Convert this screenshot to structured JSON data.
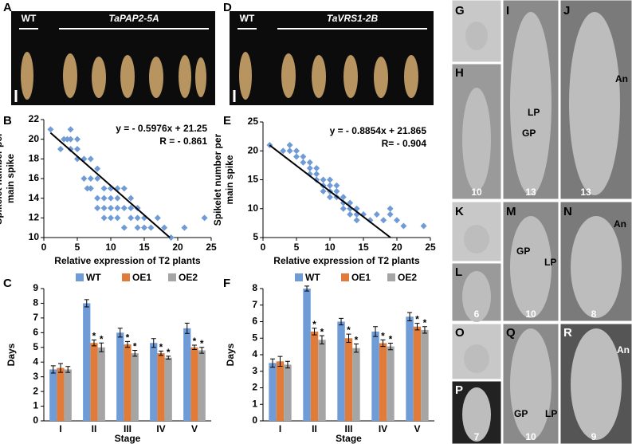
{
  "panel_labels": [
    "A",
    "B",
    "C",
    "D",
    "E",
    "F",
    "G",
    "H",
    "I",
    "J",
    "K",
    "L",
    "M",
    "N",
    "O",
    "P",
    "Q",
    "R"
  ],
  "photo_text": {
    "wt_a": "WT",
    "line_a": "TaPAP2-5A",
    "wt_d": "WT",
    "line_d": "TaVRS1-2B",
    "stages": [
      "10",
      "13",
      "13",
      "6",
      "10",
      "8",
      "7",
      "10",
      "9"
    ],
    "annotations": [
      "LP",
      "GP",
      "An",
      "GP",
      "LP",
      "An",
      "GP",
      "LP",
      "An"
    ]
  },
  "chart_data": [
    {
      "type": "scatter",
      "color": "#6f9bd6",
      "x": [
        1,
        3,
        4,
        5,
        4,
        2.5,
        3.5,
        4,
        5,
        5,
        6,
        6,
        6.5,
        7,
        7,
        7,
        8,
        8,
        8,
        8,
        9,
        9,
        9,
        9,
        10,
        10,
        10,
        10,
        11,
        11,
        11,
        11,
        12,
        12,
        12,
        13,
        13,
        13,
        14,
        14,
        14,
        15,
        15,
        16,
        17,
        18,
        19,
        21,
        24
      ],
      "y": [
        21,
        20,
        20,
        20,
        21,
        19,
        20,
        19,
        18,
        19,
        18,
        16,
        15,
        18,
        16,
        15,
        17,
        16,
        14,
        13,
        15,
        14,
        13,
        12,
        15,
        14,
        13,
        12,
        15,
        14,
        13,
        12,
        15,
        13,
        11,
        14,
        13,
        12,
        13,
        12,
        11,
        12,
        11,
        11,
        12,
        11,
        10,
        11,
        12
      ],
      "xlim": [
        0,
        25
      ],
      "xticks": [
        0,
        5,
        10,
        15,
        20,
        25
      ],
      "ylim": [
        10,
        22
      ],
      "yticks": [
        10,
        12,
        14,
        16,
        18,
        20,
        22
      ],
      "xlabel": "Relative expression of T2 plants",
      "ylabel": [
        "Spikelet number per",
        "main spike"
      ],
      "equation": "y = - 0.5976x + 21.25",
      "r_label": "R = - 0.861",
      "trendline": {
        "slope": -0.5976,
        "intercept": 21.25
      }
    },
    {
      "type": "scatter",
      "color": "#6f9bd6",
      "x": [
        1,
        3,
        4,
        4,
        5,
        5,
        6,
        6,
        7,
        7,
        7,
        8,
        8,
        8,
        9,
        9,
        9,
        10,
        10,
        10,
        10,
        11,
        11,
        11,
        12,
        12,
        12,
        13,
        13,
        13,
        14,
        14,
        14,
        15,
        16,
        17,
        18,
        19,
        19,
        20,
        21,
        24
      ],
      "y": [
        21,
        20,
        20,
        21,
        19,
        20,
        19,
        18,
        18,
        17,
        16,
        17,
        15,
        16,
        15,
        14,
        13,
        15,
        14,
        12,
        13,
        14,
        12,
        13,
        12,
        11,
        10,
        11,
        10,
        9,
        10,
        9,
        8,
        9,
        8,
        9,
        8,
        10,
        9,
        8,
        7,
        7
      ],
      "xlim": [
        0,
        25
      ],
      "xticks": [
        0,
        5,
        10,
        15,
        20,
        25
      ],
      "ylim": [
        5,
        25
      ],
      "yticks": [
        5,
        10,
        15,
        20,
        25
      ],
      "xlabel": "Relative expression of T2 plants",
      "ylabel": [
        "Spikelet number per",
        "main spike"
      ],
      "equation": "y = - 0.8854x + 21.865",
      "r_label": "R= - 0.904",
      "trendline": {
        "slope": -0.8854,
        "intercept": 21.865
      }
    },
    {
      "type": "bar",
      "categories": [
        "I",
        "II",
        "III",
        "IV",
        "V"
      ],
      "xlabel": "Stage",
      "ylabel": "Days",
      "ylim": [
        0,
        9
      ],
      "yticks": [
        0,
        1,
        2,
        3,
        4,
        5,
        6,
        7,
        8,
        9
      ],
      "series": [
        {
          "name": "WT",
          "color": "#6f9bd6",
          "values": [
            3.5,
            8,
            6,
            5.3,
            6.3
          ],
          "errors": [
            0.25,
            0.25,
            0.3,
            0.3,
            0.35
          ]
        },
        {
          "name": "OE1",
          "color": "#e07b39",
          "values": [
            3.6,
            5.3,
            5.2,
            4.6,
            5
          ],
          "errors": [
            0.3,
            0.2,
            0.2,
            0.15,
            0.15
          ],
          "annotations": [
            null,
            "*",
            "*",
            "*",
            "*"
          ]
        },
        {
          "name": "OE2",
          "color": "#a5a5a5",
          "values": [
            3.5,
            5,
            4.6,
            4.3,
            4.8
          ],
          "errors": [
            0.2,
            0.3,
            0.2,
            0.1,
            0.2
          ],
          "annotations": [
            null,
            "*",
            "*",
            "*",
            "*"
          ]
        }
      ]
    },
    {
      "type": "bar",
      "categories": [
        "I",
        "II",
        "III",
        "IV",
        "V"
      ],
      "xlabel": "Stage",
      "ylabel": "Days",
      "ylim": [
        0,
        8
      ],
      "yticks": [
        0,
        1,
        2,
        3,
        4,
        5,
        6,
        7,
        8
      ],
      "series": [
        {
          "name": "WT",
          "color": "#6f9bd6",
          "values": [
            3.5,
            8,
            6,
            5.4,
            6.3
          ],
          "errors": [
            0.25,
            0.15,
            0.2,
            0.3,
            0.25
          ]
        },
        {
          "name": "OE1",
          "color": "#e07b39",
          "values": [
            3.6,
            5.4,
            5,
            4.7,
            5.7
          ],
          "errors": [
            0.3,
            0.2,
            0.25,
            0.2,
            0.2
          ],
          "annotations": [
            null,
            "*",
            "*",
            "*",
            "*"
          ]
        },
        {
          "name": "OE2",
          "color": "#a5a5a5",
          "values": [
            3.4,
            4.9,
            4.4,
            4.5,
            5.5
          ],
          "errors": [
            0.2,
            0.25,
            0.25,
            0.2,
            0.2
          ],
          "annotations": [
            null,
            "*",
            "*",
            "*",
            "*"
          ]
        }
      ]
    }
  ]
}
